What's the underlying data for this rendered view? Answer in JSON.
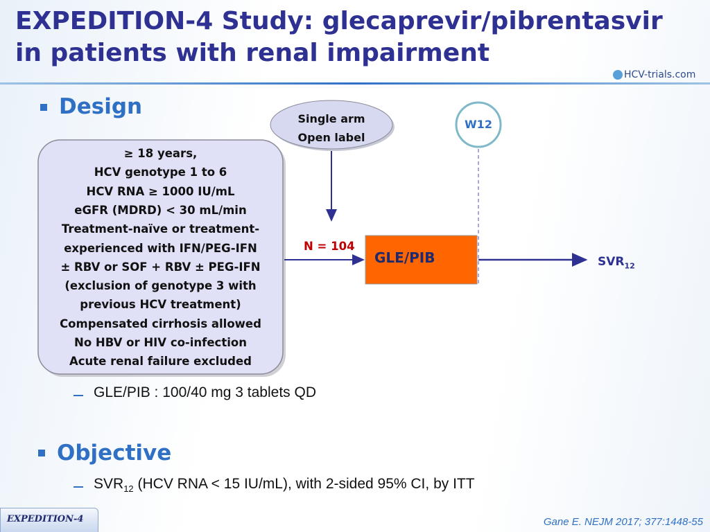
{
  "header": {
    "title_lines": [
      "EXPEDITION-4 Study: glecaprevir/pibrentasvir",
      "in patients with renal impairment"
    ],
    "logo": "HCV-trials.com"
  },
  "design": {
    "heading": "Design",
    "criteria": [
      "≥ 18 years,",
      "HCV genotype 1 to 6",
      "HCV RNA ≥ 1000 IU/mL",
      "eGFR (MDRD) < 30 mL/min",
      "Treatment-naïve or treatment-",
      "experienced with IFN/PEG-IFN",
      "± RBV or SOF + RBV ± PEG-IFN",
      "(exclusion of genotype 3 with",
      "previous HCV treatment)",
      "Compensated cirrhosis allowed",
      "No HBV or HIV co-infection",
      "Acute renal failure excluded"
    ],
    "bubble": [
      "Single arm",
      "Open label"
    ],
    "timepoint": "W12",
    "n": "N = 104",
    "arm": "GLE/PIB",
    "endpoint": {
      "main": "SVR",
      "sub": "12"
    },
    "dosing": "GLE/PIB : 100/40 mg 3 tablets QD"
  },
  "objective": {
    "heading": "Objective",
    "main": "SVR",
    "sub": "12",
    "rest": "(HCV RNA < 15 IU/mL), with 2-sided 95% CI, by ITT"
  },
  "footer": {
    "tag": "EXPEDITION-4",
    "citation": "Gane E. NEJM 2017; 377:1448-55"
  }
}
